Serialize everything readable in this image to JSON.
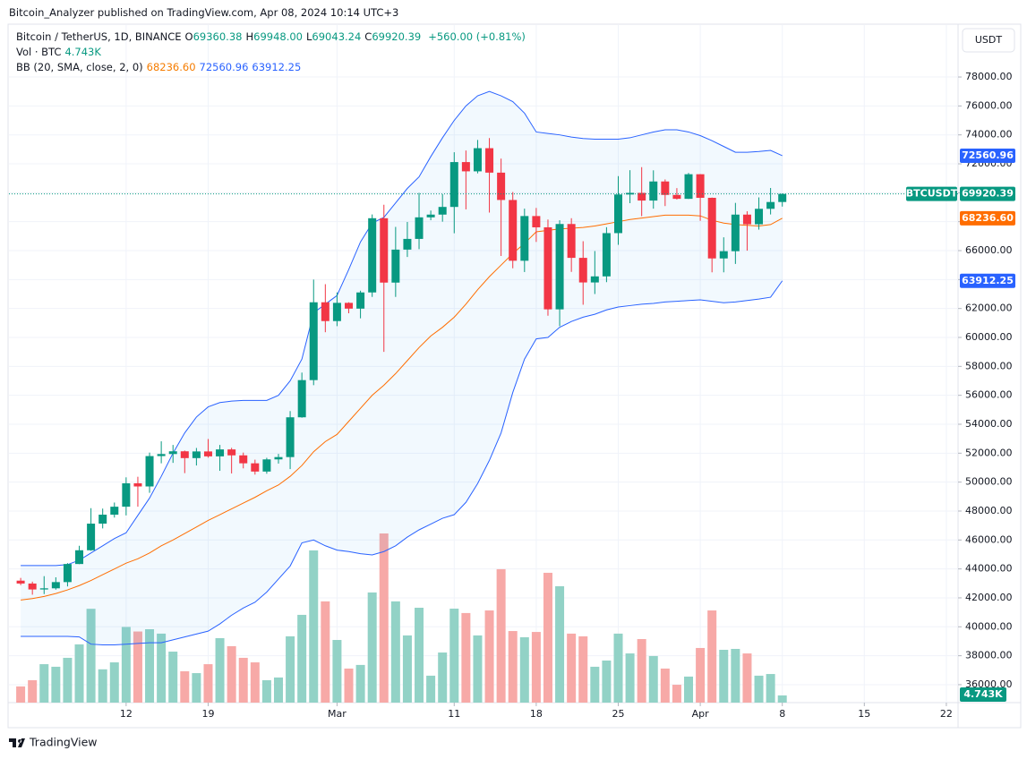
{
  "header": {
    "published": "Bitcoin_Analyzer published on TradingView.com, Apr 08, 2024 10:14 UTC+3",
    "brand": "TradingView",
    "currency": "USDT"
  },
  "chart_data": {
    "type": "candlestick",
    "symbol": "Bitcoin / TetherUS, 1D, BINANCE",
    "legend_ohlc": [
      {
        "key": "O",
        "label": "69360.38"
      },
      {
        "key": "H",
        "label": "69948.00"
      },
      {
        "key": "L",
        "label": "69043.24"
      },
      {
        "key": "C",
        "label": "69920.39"
      }
    ],
    "change": "+560.00 (+0.81%)",
    "x": [
      "2024-02-03",
      "2024-02-04",
      "2024-02-05",
      "2024-02-06",
      "2024-02-07",
      "2024-02-08",
      "2024-02-09",
      "2024-02-10",
      "2024-02-11",
      "2024-02-12",
      "2024-02-13",
      "2024-02-14",
      "2024-02-15",
      "2024-02-16",
      "2024-02-17",
      "2024-02-18",
      "2024-02-19",
      "2024-02-20",
      "2024-02-21",
      "2024-02-22",
      "2024-02-23",
      "2024-02-24",
      "2024-02-25",
      "2024-02-26",
      "2024-02-27",
      "2024-02-28",
      "2024-02-29",
      "2024-03-01",
      "2024-03-02",
      "2024-03-03",
      "2024-03-04",
      "2024-03-05",
      "2024-03-06",
      "2024-03-07",
      "2024-03-08",
      "2024-03-09",
      "2024-03-10",
      "2024-03-11",
      "2024-03-12",
      "2024-03-13",
      "2024-03-14",
      "2024-03-15",
      "2024-03-16",
      "2024-03-17",
      "2024-03-18",
      "2024-03-19",
      "2024-03-20",
      "2024-03-21",
      "2024-03-22",
      "2024-03-23",
      "2024-03-24",
      "2024-03-25",
      "2024-03-26",
      "2024-03-27",
      "2024-03-28",
      "2024-03-29",
      "2024-03-30",
      "2024-03-31",
      "2024-04-01",
      "2024-04-02",
      "2024-04-03",
      "2024-04-04",
      "2024-04-05",
      "2024-04-06",
      "2024-04-07",
      "2024-04-08"
    ],
    "series": [
      {
        "name": "BTCUSDT",
        "up_color": "#089981",
        "down_color": "#f23645",
        "open": [
          43190,
          42990,
          42580,
          42660,
          43090,
          44340,
          45290,
          47130,
          47750,
          48300,
          49920,
          49700,
          51800,
          51940,
          52130,
          51660,
          52120,
          51780,
          52260,
          51850,
          51300,
          50730,
          51570,
          51730,
          54480,
          57050,
          62430,
          61130,
          62390,
          61990,
          63110,
          68240,
          63790,
          66070,
          66810,
          68300,
          68490,
          69020,
          72120,
          71480,
          73080,
          71390,
          69500,
          65300,
          68390,
          67610,
          61940,
          67840,
          65500,
          63800,
          64220,
          67210,
          69880,
          69990,
          69460,
          70780,
          69850,
          69580,
          71280,
          69650,
          65460,
          65960,
          68490,
          67820,
          68890,
          69360.38
        ],
        "high": [
          43380,
          43120,
          43500,
          43420,
          44400,
          45600,
          48200,
          48170,
          48590,
          50330,
          50370,
          52040,
          52820,
          52570,
          52180,
          52360,
          52980,
          52570,
          52370,
          52040,
          51550,
          51680,
          51950,
          54910,
          57570,
          64000,
          63680,
          63110,
          62430,
          63230,
          68500,
          69170,
          67640,
          67980,
          69990,
          68770,
          69900,
          72800,
          72920,
          73650,
          73780,
          72360,
          70050,
          68900,
          68950,
          68150,
          68100,
          68240,
          66650,
          65970,
          67620,
          71150,
          71560,
          71770,
          71550,
          70920,
          70320,
          71370,
          71290,
          69670,
          66920,
          69300,
          68720,
          69680,
          70330,
          69948
        ],
        "low": [
          42880,
          42220,
          42260,
          42570,
          42790,
          44330,
          45250,
          46800,
          47550,
          47700,
          48300,
          49260,
          51300,
          51330,
          50620,
          51150,
          51690,
          50780,
          50600,
          50950,
          50520,
          50580,
          51280,
          50900,
          54450,
          56700,
          60360,
          60780,
          61670,
          61320,
          62800,
          59000,
          62800,
          65560,
          66100,
          68100,
          68000,
          67200,
          68850,
          71340,
          68630,
          65630,
          64780,
          64520,
          66600,
          61500,
          60780,
          64530,
          62260,
          63000,
          63820,
          66400,
          69280,
          68380,
          68900,
          69080,
          69530,
          69570,
          68060,
          64500,
          64500,
          65080,
          66000,
          67450,
          68500,
          69043.24
        ],
        "close": [
          42990,
          42580,
          42660,
          43090,
          44340,
          45290,
          47130,
          47750,
          48300,
          49920,
          49700,
          51800,
          51940,
          52130,
          51660,
          52120,
          51780,
          52260,
          51850,
          51300,
          50730,
          51570,
          51730,
          54480,
          57050,
          62430,
          61130,
          62390,
          61990,
          63110,
          68240,
          63790,
          66070,
          66810,
          68300,
          68490,
          69020,
          72120,
          71480,
          73080,
          71390,
          69500,
          65300,
          68390,
          67610,
          61940,
          67840,
          65500,
          63800,
          64220,
          67210,
          69880,
          69990,
          69460,
          70780,
          69850,
          69580,
          71280,
          69650,
          65460,
          65960,
          68490,
          67820,
          68890,
          69360,
          69920.39
        ]
      }
    ],
    "volume": {
      "name": "Vol · BTC",
      "up_color": "#92d2c6",
      "down_color": "#f7a9a7",
      "tag_color": "#089981",
      "values": [
        10700,
        14800,
        25400,
        23700,
        29600,
        38500,
        62000,
        22000,
        26600,
        50000,
        47000,
        48500,
        45600,
        33700,
        20700,
        19500,
        25400,
        42600,
        37300,
        29600,
        26600,
        14800,
        16600,
        43800,
        58000,
        100600,
        66900,
        41400,
        22500,
        24900,
        72800,
        111800,
        66900,
        44400,
        62700,
        17800,
        33100,
        62100,
        59200,
        44400,
        60900,
        88200,
        47300,
        43200,
        46700,
        85800,
        76900,
        45600,
        43800,
        23700,
        27800,
        45600,
        32500,
        42000,
        30800,
        22500,
        11800,
        17200,
        36100,
        60900,
        34900,
        35500,
        32500,
        17800,
        18900,
        4743
      ],
      "value_labels": [
        null,
        null,
        null,
        null,
        null,
        null,
        null,
        null,
        null,
        null,
        null,
        null,
        null,
        null,
        null,
        null,
        null,
        null,
        null,
        null,
        null,
        null,
        null,
        null,
        null,
        null,
        null,
        null,
        null,
        null,
        null,
        null,
        null,
        null,
        null,
        null,
        null,
        null,
        null,
        null,
        null,
        null,
        null,
        null,
        null,
        null,
        null,
        null,
        null,
        null,
        null,
        null,
        null,
        null,
        null,
        null,
        null,
        null,
        null,
        null,
        null,
        null,
        null,
        null,
        null,
        "4.743K"
      ]
    },
    "bollinger": {
      "name": "BB (20, SMA, close, 2, 0)",
      "fill": "rgba(33,150,243,0.06)",
      "basis": {
        "color": "#ff6d00",
        "values": [
          41850,
          41950,
          42100,
          42300,
          42550,
          42850,
          43200,
          43600,
          44000,
          44400,
          44700,
          45100,
          45600,
          46000,
          46450,
          46900,
          47350,
          47750,
          48150,
          48550,
          48950,
          49400,
          49800,
          50400,
          51150,
          52100,
          52800,
          53300,
          54200,
          55100,
          56000,
          56700,
          57500,
          58400,
          59300,
          60100,
          60700,
          61400,
          62300,
          63300,
          64200,
          65000,
          65800,
          66500,
          67300,
          67400,
          67500,
          67550,
          67600,
          67700,
          67850,
          68000,
          68150,
          68250,
          68350,
          68450,
          68450,
          68450,
          68400,
          68100,
          67900,
          67800,
          67750,
          67700,
          67800,
          68236.6
        ],
        "value_labels": [
          null,
          null,
          null,
          null,
          null,
          null,
          null,
          null,
          null,
          null,
          null,
          null,
          null,
          null,
          null,
          null,
          null,
          null,
          null,
          null,
          null,
          null,
          null,
          null,
          null,
          null,
          null,
          null,
          null,
          null,
          null,
          null,
          null,
          null,
          null,
          null,
          null,
          null,
          null,
          null,
          null,
          null,
          null,
          null,
          null,
          null,
          null,
          null,
          null,
          null,
          null,
          null,
          null,
          null,
          null,
          null,
          null,
          null,
          null,
          null,
          null,
          null,
          null,
          null,
          null,
          "68236.60"
        ]
      },
      "upper": {
        "color": "#2962ff",
        "values": [
          44230,
          44230,
          44230,
          44230,
          44300,
          44600,
          45100,
          45600,
          46100,
          46500,
          47700,
          48900,
          50400,
          52000,
          53400,
          54500,
          55200,
          55500,
          55600,
          55650,
          55650,
          55650,
          56000,
          57000,
          58500,
          61700,
          62300,
          62900,
          64700,
          66600,
          67900,
          68300,
          69300,
          70300,
          71100,
          72500,
          73800,
          75000,
          76000,
          76700,
          77000,
          76700,
          76300,
          75500,
          74200,
          74100,
          74000,
          73850,
          73750,
          73700,
          73700,
          73700,
          73800,
          74000,
          74200,
          74350,
          74350,
          74200,
          73950,
          73600,
          73200,
          72800,
          72800,
          72850,
          72930,
          72560.96
        ]
      },
      "lower": {
        "color": "#2962ff",
        "values": [
          39340,
          39340,
          39340,
          39340,
          39340,
          39300,
          38800,
          38750,
          38750,
          38800,
          38850,
          38900,
          38900,
          39100,
          39300,
          39500,
          39700,
          40200,
          40800,
          41300,
          41700,
          42400,
          43300,
          44200,
          45800,
          46000,
          45600,
          45300,
          45200,
          45050,
          44970,
          45200,
          45600,
          46200,
          46700,
          47100,
          47500,
          47750,
          48600,
          49900,
          51500,
          53400,
          56200,
          58500,
          59900,
          60000,
          60700,
          61100,
          61400,
          61600,
          61900,
          62100,
          62200,
          62300,
          62350,
          62450,
          62500,
          62550,
          62600,
          62500,
          62400,
          62450,
          62550,
          62650,
          62780,
          63912.25
        ]
      }
    },
    "xlim": [
      "2024-02-02",
      "2024-04-23"
    ],
    "xticks": [
      {
        "value": "2024-02-12",
        "label": "12"
      },
      {
        "value": "2024-02-19",
        "label": "19"
      },
      {
        "value": "2024-03-01",
        "label": "Mar"
      },
      {
        "value": "2024-03-11",
        "label": "11"
      },
      {
        "value": "2024-03-18",
        "label": "18"
      },
      {
        "value": "2024-03-25",
        "label": "25"
      },
      {
        "value": "2024-04-01",
        "label": "Apr"
      },
      {
        "value": "2024-04-08",
        "label": "8"
      },
      {
        "value": "2024-04-15",
        "label": "15"
      },
      {
        "value": "2024-04-22",
        "label": "22"
      }
    ],
    "ylim": [
      34760,
      81590
    ],
    "yticks": [
      {
        "value": 36000,
        "label": "36000.00"
      },
      {
        "value": 38000,
        "label": "38000.00"
      },
      {
        "value": 40000,
        "label": "40000.00"
      },
      {
        "value": 42000,
        "label": "42000.00"
      },
      {
        "value": 44000,
        "label": "44000.00"
      },
      {
        "value": 46000,
        "label": "46000.00"
      },
      {
        "value": 48000,
        "label": "48000.00"
      },
      {
        "value": 50000,
        "label": "50000.00"
      },
      {
        "value": 52000,
        "label": "52000.00"
      },
      {
        "value": 54000,
        "label": "54000.00"
      },
      {
        "value": 56000,
        "label": "56000.00"
      },
      {
        "value": 58000,
        "label": "58000.00"
      },
      {
        "value": 60000,
        "label": "60000.00"
      },
      {
        "value": 62000,
        "label": "62000.00"
      },
      {
        "value": 64000,
        "label": "64000.00"
      },
      {
        "value": 66000,
        "label": "66000.00"
      },
      {
        "value": 68000,
        "label": "68000.00"
      },
      {
        "value": 70000,
        "label": "70000.00"
      },
      {
        "value": 72000,
        "label": "72000.00"
      },
      {
        "value": 74000,
        "label": "74000.00"
      },
      {
        "value": 76000,
        "label": "76000.00"
      },
      {
        "value": 78000,
        "label": "78000.00"
      }
    ],
    "grid": true
  }
}
